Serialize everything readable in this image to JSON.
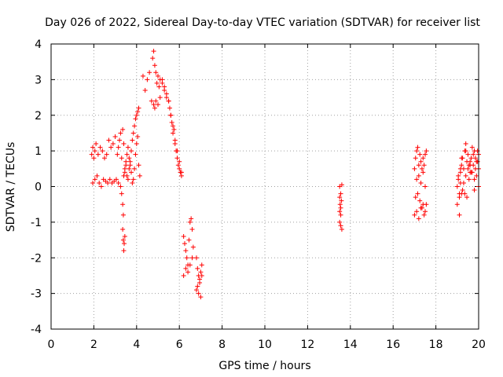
{
  "chart_data": {
    "type": "scatter",
    "title": "Day 026 of 2022, Sidereal Day-to-day VTEC variation (SDTVAR) for receiver list",
    "xlabel": "GPS time / hours",
    "ylabel": "SDTVAR / TECUs",
    "xlim": [
      0,
      20
    ],
    "ylim": [
      -4,
      4
    ],
    "xticks": [
      0,
      2,
      4,
      6,
      8,
      10,
      12,
      14,
      16,
      18,
      20
    ],
    "yticks": [
      -4,
      -3,
      -2,
      -1,
      0,
      1,
      2,
      3,
      4
    ],
    "xtick_labels": [
      "0",
      "2",
      "4",
      "6",
      "8",
      "10",
      "12",
      "14",
      "16",
      "18",
      "20"
    ],
    "ytick_labels": [
      "-4",
      "-3",
      "-2",
      "-1",
      "0",
      "1",
      "2",
      "3",
      "4"
    ],
    "grid": true,
    "marker": "+",
    "series": [
      {
        "name": "SDTVAR",
        "color": "#ff0000",
        "x": [
          1.9,
          1.95,
          2.0,
          2.05,
          2.1,
          2.2,
          2.3,
          2.4,
          2.5,
          2.6,
          2.7,
          2.8,
          2.9,
          3.0,
          3.1,
          3.15,
          3.2,
          3.25,
          3.3,
          3.35,
          3.4,
          3.45,
          3.5,
          3.55,
          3.6,
          3.65,
          3.7,
          3.75,
          3.8,
          3.85,
          3.9,
          3.95,
          4.0,
          4.05,
          4.1,
          1.95,
          2.05,
          2.15,
          2.25,
          2.35,
          2.45,
          2.55,
          2.65,
          2.75,
          2.85,
          2.95,
          3.05,
          3.15,
          3.25,
          3.3,
          3.35,
          3.38,
          3.4,
          3.45,
          3.5,
          3.55,
          3.6,
          3.65,
          3.7,
          3.75,
          3.8,
          3.85,
          3.9,
          3.95,
          4.0,
          4.05,
          4.1,
          4.15,
          3.35,
          3.38,
          3.4,
          3.42,
          3.45,
          4.3,
          4.4,
          4.5,
          4.6,
          4.7,
          4.75,
          4.8,
          4.85,
          4.9,
          4.95,
          5.0,
          5.05,
          5.1,
          5.2,
          5.3,
          5.4,
          5.5,
          5.55,
          5.6,
          5.65,
          5.7,
          5.75,
          5.8,
          5.85,
          5.9,
          5.95,
          6.0,
          6.05,
          6.1,
          4.8,
          4.85,
          4.9,
          5.0,
          5.1,
          5.2,
          5.3,
          5.4,
          5.5,
          5.6,
          5.7,
          5.8,
          5.9,
          6.0,
          6.1,
          6.2,
          6.25,
          6.3,
          6.35,
          6.4,
          6.45,
          6.5,
          6.55,
          6.6,
          6.65,
          6.2,
          6.3,
          6.4,
          6.5,
          6.6,
          6.8,
          6.85,
          6.9,
          6.95,
          7.0,
          7.05,
          6.8,
          6.9,
          7.0,
          6.85,
          6.95,
          7.05,
          13.5,
          13.5,
          13.52,
          13.55,
          13.55,
          13.58,
          13.6,
          13.5,
          13.55,
          13.6,
          13.5,
          13.55,
          17.0,
          17.05,
          17.1,
          17.15,
          17.2,
          17.25,
          17.3,
          17.35,
          17.4,
          17.45,
          17.5,
          17.55,
          17.0,
          17.1,
          17.2,
          17.3,
          17.4,
          17.5,
          17.1,
          17.2,
          17.3,
          17.4,
          17.5,
          17.05,
          17.15,
          17.25,
          17.35,
          17.45,
          17.55,
          19.0,
          19.05,
          19.1,
          19.15,
          19.2,
          19.25,
          19.3,
          19.35,
          19.4,
          19.45,
          19.5,
          19.55,
          19.6,
          19.65,
          19.7,
          19.75,
          19.8,
          19.85,
          19.9,
          19.95,
          20.0,
          19.0,
          19.1,
          19.2,
          19.3,
          19.4,
          19.5,
          19.6,
          19.7,
          19.8,
          19.9,
          20.0,
          19.05,
          19.15,
          19.25,
          19.35,
          19.45,
          19.55,
          19.65,
          19.75,
          19.85,
          19.95,
          19.1,
          19.15,
          19.2,
          19.4,
          19.6,
          19.8,
          20.0
        ],
        "y": [
          0.9,
          1.1,
          0.8,
          1.0,
          1.2,
          0.9,
          1.1,
          1.0,
          0.8,
          0.9,
          1.3,
          1.1,
          1.2,
          1.4,
          0.9,
          1.1,
          1.3,
          1.5,
          0.8,
          1.6,
          1.2,
          0.5,
          0.7,
          0.9,
          1.1,
          0.8,
          0.6,
          1.0,
          1.3,
          1.5,
          1.7,
          1.9,
          2.0,
          2.1,
          2.2,
          0.1,
          0.2,
          0.3,
          0.1,
          0.0,
          0.2,
          0.15,
          0.1,
          0.2,
          0.1,
          0.15,
          0.2,
          0.1,
          0.0,
          -0.2,
          -0.5,
          -0.8,
          0.3,
          0.4,
          0.6,
          0.3,
          0.2,
          0.5,
          0.7,
          0.4,
          0.1,
          0.2,
          0.5,
          0.9,
          1.2,
          1.4,
          0.6,
          0.3,
          -1.2,
          -1.5,
          -1.8,
          -1.6,
          -1.4,
          3.1,
          2.7,
          3.0,
          3.2,
          2.4,
          3.6,
          3.8,
          3.4,
          3.2,
          2.9,
          3.1,
          2.8,
          3.0,
          2.9,
          2.7,
          2.5,
          2.4,
          2.2,
          2.0,
          1.8,
          1.5,
          1.6,
          1.2,
          1.0,
          0.8,
          0.6,
          0.5,
          0.4,
          0.3,
          2.3,
          2.2,
          2.4,
          2.3,
          2.5,
          3.0,
          2.8,
          2.6,
          2.4,
          2.0,
          1.7,
          1.3,
          1.0,
          0.7,
          0.4,
          -1.4,
          -1.6,
          -1.8,
          -2.0,
          -2.2,
          -1.5,
          -1.0,
          -0.9,
          -1.2,
          -1.7,
          -2.5,
          -2.3,
          -2.4,
          -2.2,
          -2.0,
          -2.0,
          -2.3,
          -2.5,
          -2.6,
          -2.4,
          -2.2,
          -2.9,
          -3.0,
          -3.1,
          -2.8,
          -2.7,
          -2.5,
          0.0,
          -0.3,
          -0.5,
          -0.6,
          -0.2,
          -0.4,
          0.05,
          -1.0,
          -1.1,
          -1.2,
          -0.7,
          -0.8,
          0.5,
          0.8,
          1.0,
          1.1,
          0.6,
          0.9,
          0.7,
          0.5,
          0.8,
          0.6,
          0.9,
          1.0,
          -0.8,
          -0.7,
          -0.9,
          -0.6,
          -0.5,
          -0.7,
          0.2,
          0.3,
          0.1,
          0.4,
          0.0,
          -0.3,
          -0.2,
          -0.4,
          -0.6,
          -0.8,
          -0.5,
          0.0,
          0.2,
          -0.2,
          0.4,
          0.6,
          0.8,
          0.5,
          1.0,
          1.2,
          0.7,
          0.9,
          0.6,
          0.4,
          0.8,
          1.1,
          0.9,
          1.0,
          0.8,
          0.7,
          1.0,
          0.9,
          -0.5,
          -0.8,
          -0.2,
          0.1,
          0.3,
          0.5,
          0.7,
          0.4,
          0.2,
          0.3,
          0.5,
          0.3,
          0.1,
          -0.1,
          -0.2,
          -0.3,
          0.2,
          0.4,
          0.6,
          0.5,
          0.7,
          -0.3,
          0.5,
          0.8,
          1.0,
          0.6,
          -0.1,
          0.0
        ]
      }
    ]
  }
}
